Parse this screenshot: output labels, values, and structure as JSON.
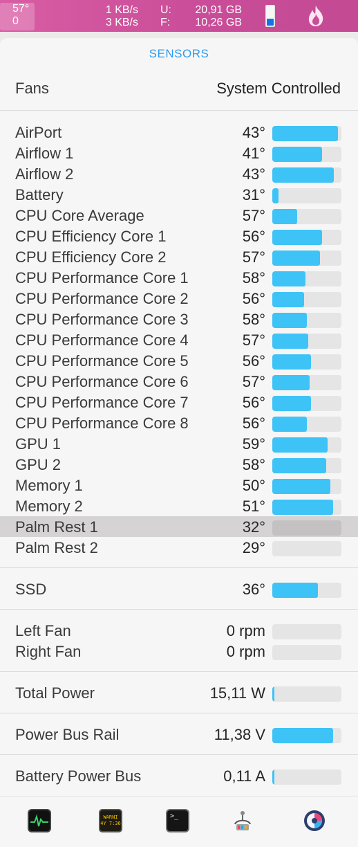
{
  "menubar": {
    "temp_top": "57°",
    "temp_bottom": "0",
    "net_up": "1 KB/s",
    "net_down": "3 KB/s",
    "disk_used_label": "U:",
    "disk_used": "20,91 GB",
    "disk_free_label": "F:",
    "disk_free": "10,26 GB",
    "battery_level": 0.35,
    "battery_icon": "battery-icon",
    "flame_icon": "flame-icon"
  },
  "popover": {
    "title": "SENSORS",
    "fans_label": "Fans",
    "fans_value": "System Controlled"
  },
  "sensors": [
    {
      "label": "AirPort",
      "value": "43°",
      "level": 0.95
    },
    {
      "label": "Airflow 1",
      "value": "41°",
      "level": 0.72
    },
    {
      "label": "Airflow 2",
      "value": "43°",
      "level": 0.89
    },
    {
      "label": "Battery",
      "value": "31°",
      "level": 0.09
    },
    {
      "label": "CPU Core Average",
      "value": "57°",
      "level": 0.36
    },
    {
      "label": "CPU Efficiency Core 1",
      "value": "56°",
      "level": 0.72
    },
    {
      "label": "CPU Efficiency Core 2",
      "value": "57°",
      "level": 0.69
    },
    {
      "label": "CPU Performance Core 1",
      "value": "58°",
      "level": 0.48
    },
    {
      "label": "CPU Performance Core 2",
      "value": "56°",
      "level": 0.46
    },
    {
      "label": "CPU Performance Core 3",
      "value": "58°",
      "level": 0.5
    },
    {
      "label": "CPU Performance Core 4",
      "value": "57°",
      "level": 0.52
    },
    {
      "label": "CPU Performance Core 5",
      "value": "56°",
      "level": 0.56
    },
    {
      "label": "CPU Performance Core 6",
      "value": "57°",
      "level": 0.54
    },
    {
      "label": "CPU Performance Core 7",
      "value": "56°",
      "level": 0.56
    },
    {
      "label": "CPU Performance Core 8",
      "value": "56°",
      "level": 0.5
    },
    {
      "label": "GPU 1",
      "value": "59°",
      "level": 0.8
    },
    {
      "label": "GPU 2",
      "value": "58°",
      "level": 0.78
    },
    {
      "label": "Memory 1",
      "value": "50°",
      "level": 0.84
    },
    {
      "label": "Memory 2",
      "value": "51°",
      "level": 0.88
    },
    {
      "label": "Palm Rest 1",
      "value": "32°",
      "level": 0.0,
      "highlighted": true
    },
    {
      "label": "Palm Rest 2",
      "value": "29°",
      "level": 0.0
    }
  ],
  "ssd": {
    "label": "SSD",
    "value": "36°",
    "level": 0.66
  },
  "fans": [
    {
      "label": "Left Fan",
      "value": "0 rpm",
      "level": 0.0
    },
    {
      "label": "Right Fan",
      "value": "0 rpm",
      "level": 0.0
    }
  ],
  "power": {
    "label": "Total Power",
    "value": "15,11 W",
    "level": 0.03
  },
  "voltage": {
    "label": "Power Bus Rail",
    "value": "11,38 V",
    "level": 0.88
  },
  "current": {
    "label": "Battery Power Bus",
    "value": "0,11 A",
    "level": 0.02
  },
  "dock": {
    "icons": [
      "activity-monitor-icon",
      "console-icon",
      "terminal-icon",
      "system-utility-icon",
      "istat-menus-icon"
    ],
    "console_text": "WARNI\n4Y 7:36",
    "terminal_text": ">_"
  },
  "colors": {
    "menubar": "#cc4f9a",
    "title": "#2d9cf0",
    "bar_fill": "#3ec3f7",
    "bar_track": "#e6e5e5"
  }
}
